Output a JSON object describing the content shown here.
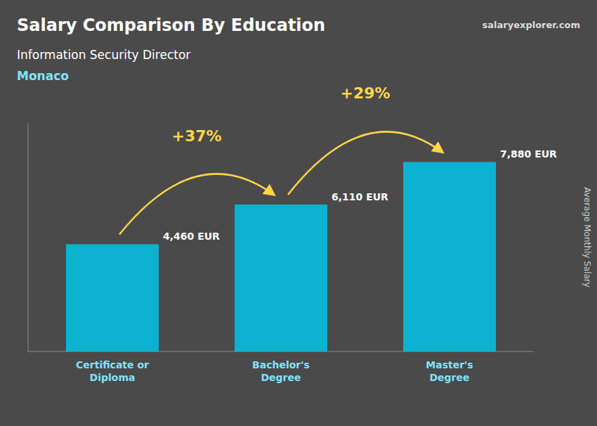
{
  "chart_data": {
    "type": "bar",
    "title": "Salary Comparison By Education",
    "subtitle": "Information Security Director",
    "y_label": "Average Monthly Salary",
    "categories": [
      "Certificate or\nDiploma",
      "Bachelor's\nDegree",
      "Master's\nDegree"
    ],
    "values": [
      4460,
      6110,
      7880
    ],
    "value_labels": [
      "4,460 EUR",
      "6,110 EUR",
      "7,880 EUR"
    ],
    "color": "#00C5E8",
    "ylim": [
      0,
      9500
    ],
    "tick_labels": "x",
    "data_labels": true,
    "annotations": [
      {
        "text": "+37%",
        "value": 37
      },
      {
        "text": "+29%",
        "value": 29
      },
      {
        "text": "Monaco"
      },
      {
        "text": "salaryexplorer.com"
      }
    ]
  }
}
